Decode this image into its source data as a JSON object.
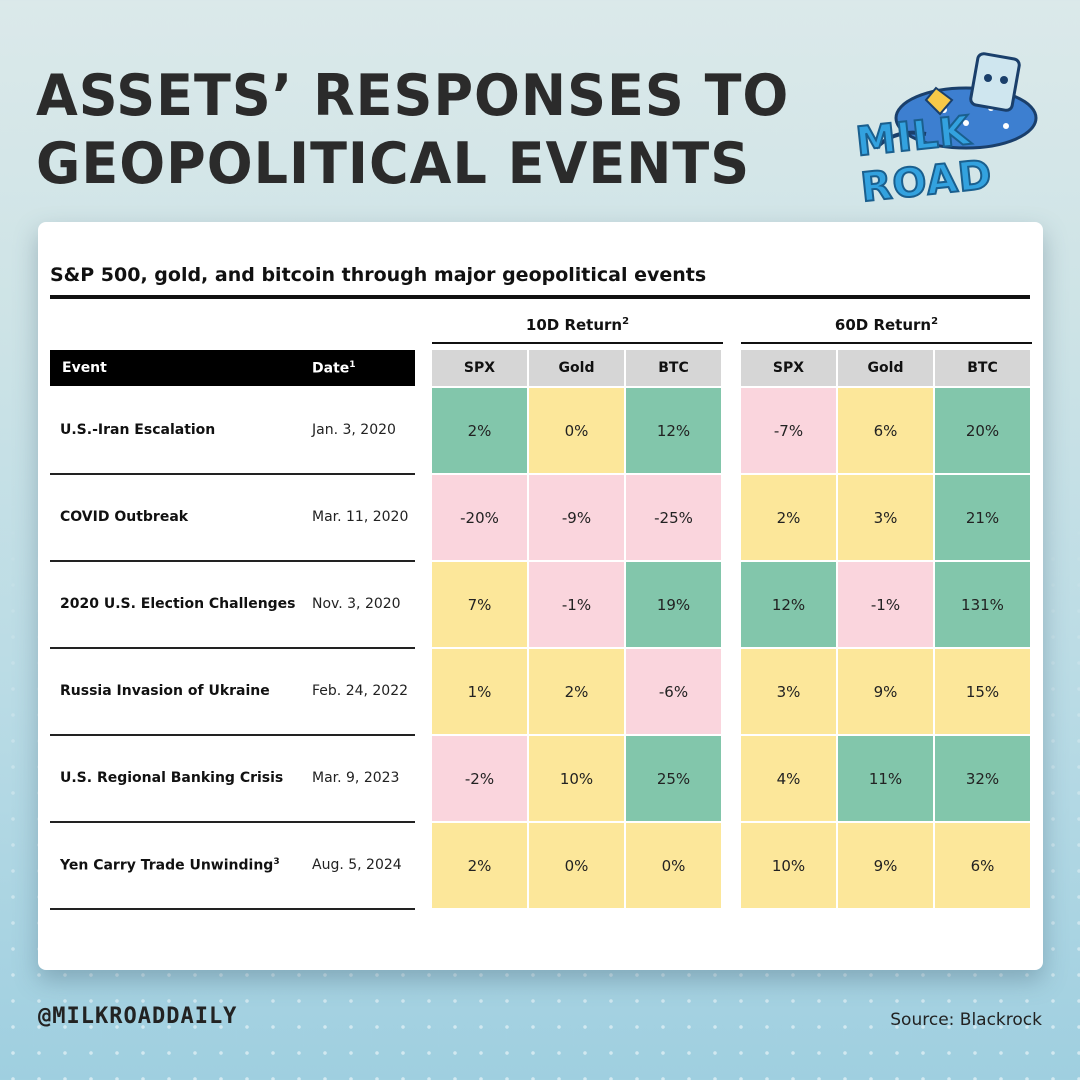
{
  "headline": [
    "ASSETS’ RESPONSES TO",
    "GEOPOLITICAL EVENTS"
  ],
  "logo": {
    "text": "MILK ROAD",
    "icon": "milk-carton-mascot-icon"
  },
  "chart_data": {
    "type": "table",
    "title": "S&P 500, gold, and bitcoin through major geopolitical events",
    "groups": [
      {
        "label": "10D Return",
        "sup": "2",
        "columns": [
          "SPX",
          "Gold",
          "BTC"
        ]
      },
      {
        "label": "60D Return",
        "sup": "2",
        "columns": [
          "SPX",
          "Gold",
          "BTC"
        ]
      }
    ],
    "header": {
      "event": "Event",
      "date": "Date",
      "date_sup": "1"
    },
    "rows": [
      {
        "event": "U.S.-Iran Escalation",
        "sup": "",
        "date": "Jan. 3, 2020",
        "values10": [
          "2%",
          "0%",
          "12%"
        ],
        "colors10": [
          "g",
          "y",
          "g"
        ],
        "values60": [
          "-7%",
          "6%",
          "20%"
        ],
        "colors60": [
          "p",
          "y",
          "g"
        ]
      },
      {
        "event": "COVID Outbreak",
        "sup": "",
        "date": "Mar. 11, 2020",
        "values10": [
          "-20%",
          "-9%",
          "-25%"
        ],
        "colors10": [
          "p",
          "p",
          "p"
        ],
        "values60": [
          "2%",
          "3%",
          "21%"
        ],
        "colors60": [
          "y",
          "y",
          "g"
        ]
      },
      {
        "event": "2020 U.S. Election Challenges",
        "sup": "",
        "date": "Nov. 3, 2020",
        "values10": [
          "7%",
          "-1%",
          "19%"
        ],
        "colors10": [
          "y",
          "p",
          "g"
        ],
        "values60": [
          "12%",
          "-1%",
          "131%"
        ],
        "colors60": [
          "g",
          "p",
          "g"
        ]
      },
      {
        "event": "Russia Invasion of Ukraine",
        "sup": "",
        "date": "Feb. 24, 2022",
        "values10": [
          "1%",
          "2%",
          "-6%"
        ],
        "colors10": [
          "y",
          "y",
          "p"
        ],
        "values60": [
          "3%",
          "9%",
          "15%"
        ],
        "colors60": [
          "y",
          "y",
          "y"
        ]
      },
      {
        "event": "U.S. Regional Banking Crisis",
        "sup": "",
        "date": "Mar. 9, 2023",
        "values10": [
          "-2%",
          "10%",
          "25%"
        ],
        "colors10": [
          "p",
          "y",
          "g"
        ],
        "values60": [
          "4%",
          "11%",
          "32%"
        ],
        "colors60": [
          "y",
          "g",
          "g"
        ]
      },
      {
        "event": "Yen Carry Trade Unwinding",
        "sup": "3",
        "date": "Aug. 5, 2024",
        "values10": [
          "2%",
          "0%",
          "0%"
        ],
        "colors10": [
          "y",
          "y",
          "y"
        ],
        "values60": [
          "10%",
          "9%",
          "6%"
        ],
        "colors60": [
          "y",
          "y",
          "y"
        ]
      }
    ],
    "palette": {
      "g": "#82c6ab",
      "y": "#fce79a",
      "p": "#fad5dd"
    }
  },
  "footer": {
    "handle": "@MILKROADDAILY",
    "source": "Source: Blackrock"
  }
}
